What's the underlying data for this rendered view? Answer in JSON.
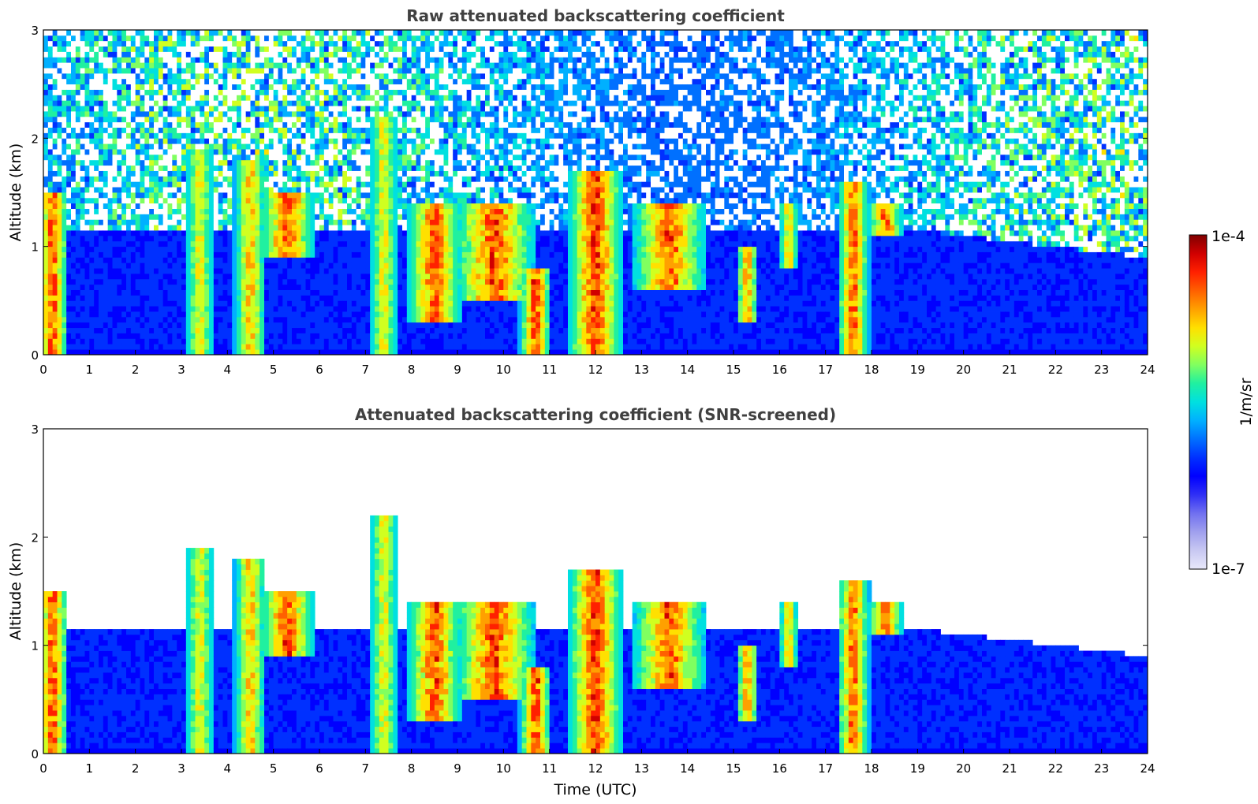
{
  "chart_data": [
    {
      "type": "heatmap",
      "title": "Raw attenuated backscattering coefficient",
      "xlabel": "",
      "ylabel": "Altitude (km)",
      "xlim": [
        0,
        24
      ],
      "ylim": [
        0,
        3
      ],
      "xticks": [
        0,
        1,
        2,
        3,
        4,
        5,
        6,
        7,
        8,
        9,
        10,
        11,
        12,
        13,
        14,
        15,
        16,
        17,
        18,
        19,
        20,
        21,
        22,
        23,
        24
      ],
      "yticks": [
        0,
        1,
        2,
        3
      ],
      "screened": false,
      "cloud_events": [
        {
          "t": 0.2,
          "w": 0.35,
          "base": 0.0,
          "top": 1.5,
          "strength": 0.95
        },
        {
          "t": 3.4,
          "w": 0.3,
          "base": 0.0,
          "top": 1.9,
          "strength": 0.6
        },
        {
          "t": 4.5,
          "w": 0.35,
          "base": 0.0,
          "top": 1.8,
          "strength": 0.7
        },
        {
          "t": 5.3,
          "w": 0.6,
          "base": 0.9,
          "top": 1.5,
          "strength": 0.95
        },
        {
          "t": 7.4,
          "w": 0.3,
          "base": 0.0,
          "top": 2.2,
          "strength": 0.6
        },
        {
          "t": 8.5,
          "w": 0.6,
          "base": 0.3,
          "top": 1.4,
          "strength": 0.95
        },
        {
          "t": 9.8,
          "w": 0.9,
          "base": 0.5,
          "top": 1.4,
          "strength": 0.95
        },
        {
          "t": 10.7,
          "w": 0.35,
          "base": 0.0,
          "top": 0.8,
          "strength": 1.0
        },
        {
          "t": 12.0,
          "w": 0.6,
          "base": 0.0,
          "top": 1.7,
          "strength": 1.0
        },
        {
          "t": 13.6,
          "w": 0.8,
          "base": 0.6,
          "top": 1.4,
          "strength": 0.95
        },
        {
          "t": 15.3,
          "w": 0.25,
          "base": 0.3,
          "top": 1.0,
          "strength": 0.8
        },
        {
          "t": 16.2,
          "w": 0.2,
          "base": 0.8,
          "top": 1.4,
          "strength": 0.7
        },
        {
          "t": 17.6,
          "w": 0.35,
          "base": 0.0,
          "top": 1.6,
          "strength": 0.9
        },
        {
          "t": 18.3,
          "w": 0.4,
          "base": 1.1,
          "top": 1.4,
          "strength": 0.9
        }
      ]
    },
    {
      "type": "heatmap",
      "title": "Attenuated backscattering coefficient (SNR-screened)",
      "xlabel": "Time (UTC)",
      "ylabel": "Altitude (km)",
      "xlim": [
        0,
        24
      ],
      "ylim": [
        0,
        3
      ],
      "xticks": [
        0,
        1,
        2,
        3,
        4,
        5,
        6,
        7,
        8,
        9,
        10,
        11,
        12,
        13,
        14,
        15,
        16,
        17,
        18,
        19,
        20,
        21,
        22,
        23,
        24
      ],
      "yticks": [
        0,
        1,
        2,
        3
      ],
      "screened": true,
      "cloud_events": [
        {
          "t": 0.2,
          "w": 0.35,
          "base": 0.0,
          "top": 1.5,
          "strength": 0.95
        },
        {
          "t": 3.4,
          "w": 0.3,
          "base": 0.0,
          "top": 1.9,
          "strength": 0.6
        },
        {
          "t": 4.5,
          "w": 0.35,
          "base": 0.0,
          "top": 1.8,
          "strength": 0.7
        },
        {
          "t": 5.3,
          "w": 0.6,
          "base": 0.9,
          "top": 1.5,
          "strength": 0.95
        },
        {
          "t": 7.4,
          "w": 0.3,
          "base": 0.0,
          "top": 2.2,
          "strength": 0.6
        },
        {
          "t": 8.5,
          "w": 0.6,
          "base": 0.3,
          "top": 1.4,
          "strength": 0.95
        },
        {
          "t": 9.8,
          "w": 0.9,
          "base": 0.5,
          "top": 1.4,
          "strength": 0.95
        },
        {
          "t": 10.7,
          "w": 0.35,
          "base": 0.0,
          "top": 0.8,
          "strength": 1.0
        },
        {
          "t": 12.0,
          "w": 0.6,
          "base": 0.0,
          "top": 1.7,
          "strength": 1.0
        },
        {
          "t": 13.6,
          "w": 0.8,
          "base": 0.6,
          "top": 1.4,
          "strength": 0.95
        },
        {
          "t": 15.3,
          "w": 0.25,
          "base": 0.3,
          "top": 1.0,
          "strength": 0.8
        },
        {
          "t": 16.2,
          "w": 0.2,
          "base": 0.8,
          "top": 1.4,
          "strength": 0.7
        },
        {
          "t": 17.6,
          "w": 0.35,
          "base": 0.0,
          "top": 1.6,
          "strength": 0.9
        },
        {
          "t": 18.3,
          "w": 0.4,
          "base": 1.1,
          "top": 1.4,
          "strength": 0.9
        }
      ]
    }
  ],
  "colorbar": {
    "label": "1/m/sr",
    "max_label": "1e-4",
    "min_label": "1e-7",
    "colors": [
      "#e8e8fa",
      "#c8c8f2",
      "#a0a0ee",
      "#7070f0",
      "#3030f5",
      "#0000ff",
      "#0030ff",
      "#0070ff",
      "#00b0ff",
      "#00e0e0",
      "#20f0a0",
      "#80ff60",
      "#d0ff20",
      "#ffe000",
      "#ffa000",
      "#ff6000",
      "#ff2000",
      "#d00000",
      "#800000"
    ]
  }
}
